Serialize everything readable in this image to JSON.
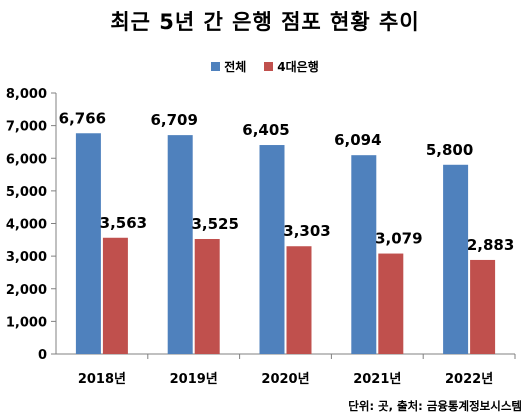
{
  "chart_data": {
    "type": "bar",
    "title": "최근 5년 간 은행 점포 현황 추이",
    "categories": [
      "2018년",
      "2019년",
      "2020년",
      "2021년",
      "2022년"
    ],
    "series": [
      {
        "name": "전체",
        "color": "#4F81BD",
        "values": [
          6766,
          6709,
          6405,
          6094,
          5800
        ],
        "labels": [
          "6,766",
          "6,709",
          "6,405",
          "6,094",
          "5,800"
        ]
      },
      {
        "name": "4대은행",
        "color": "#C0504D",
        "values": [
          3563,
          3525,
          3303,
          3079,
          2883
        ],
        "labels": [
          "3,563",
          "3,525",
          "3,303",
          "3,079",
          "2,883"
        ]
      }
    ],
    "ylim": [
      0,
      8000
    ],
    "yticks": [
      0,
      1000,
      2000,
      3000,
      4000,
      5000,
      6000,
      7000,
      8000
    ],
    "ytick_labels": [
      "0",
      "1,000",
      "2,000",
      "3,000",
      "4,000",
      "5,000",
      "6,000",
      "7,000",
      "8,000"
    ],
    "legend_position": "top-center",
    "grid": false,
    "xlabel": "",
    "ylabel": ""
  },
  "footer": {
    "source": "단위: 곳, 출처: 금융통계정보시스템"
  }
}
